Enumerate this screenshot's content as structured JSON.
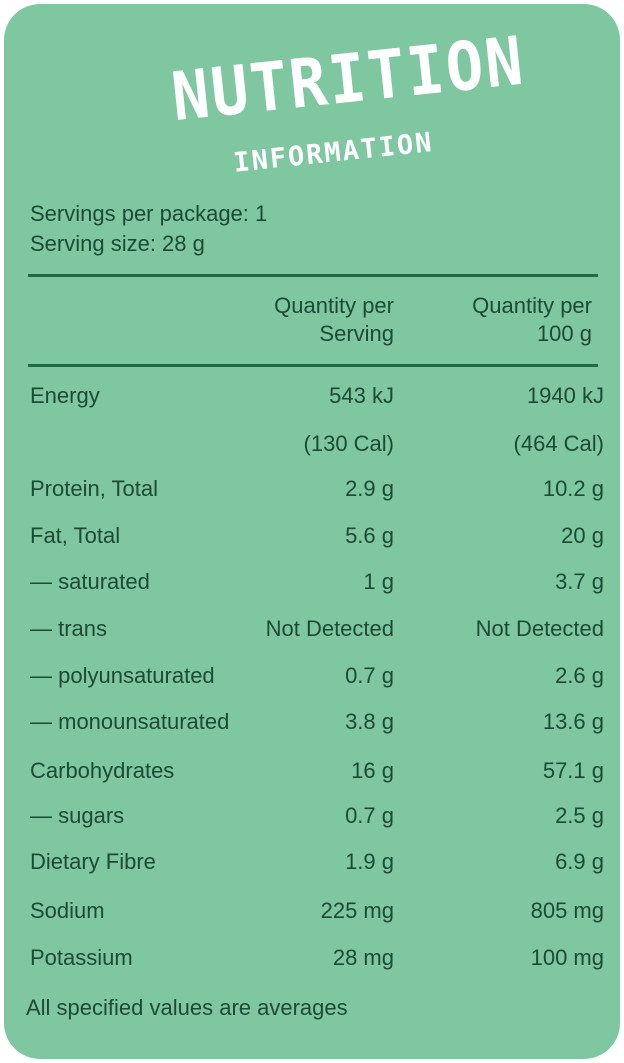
{
  "label": {
    "title_main": "NUTRITION",
    "title_sub": "INFORMATION",
    "servings_per_package": "Servings per package: 1",
    "serving_size": "Serving size: 28 g",
    "col_serving_line1": "Quantity per",
    "col_serving_line2": "Serving",
    "col_100g_line1": "Quantity per",
    "col_100g_line2": "100 g",
    "footnote": "All specified values are averages",
    "panel_color": "#7fc7a1",
    "rule_color": "#1f6b45",
    "text_color": "#1d4a35"
  },
  "rows": [
    {
      "label": "Energy",
      "serving": "543 kJ",
      "per100": "1940 kJ"
    },
    {
      "label": "",
      "serving": "(130 Cal)",
      "per100": "(464 Cal)"
    },
    {
      "label": "Protein, Total",
      "serving": "2.9 g",
      "per100": "10.2 g"
    },
    {
      "label": "Fat, Total",
      "serving": "5.6 g",
      "per100": "20 g"
    },
    {
      "label": "— saturated",
      "serving": "1 g",
      "per100": "3.7 g"
    },
    {
      "label": "— trans",
      "serving": "Not Detected",
      "per100": "Not Detected"
    },
    {
      "label": "— polyunsaturated",
      "serving": "0.7 g",
      "per100": "2.6 g"
    },
    {
      "label": "— monounsaturated",
      "serving": "3.8 g",
      "per100": "13.6 g"
    },
    {
      "label": "Carbohydrates",
      "serving": "16 g",
      "per100": "57.1 g"
    },
    {
      "label": "— sugars",
      "serving": "0.7 g",
      "per100": "2.5 g"
    },
    {
      "label": "Dietary Fibre",
      "serving": "1.9 g",
      "per100": "6.9 g"
    },
    {
      "label": "Sodium",
      "serving": "225 mg",
      "per100": "805 mg"
    },
    {
      "label": "Potassium",
      "serving": "28 mg",
      "per100": "100 mg"
    }
  ]
}
